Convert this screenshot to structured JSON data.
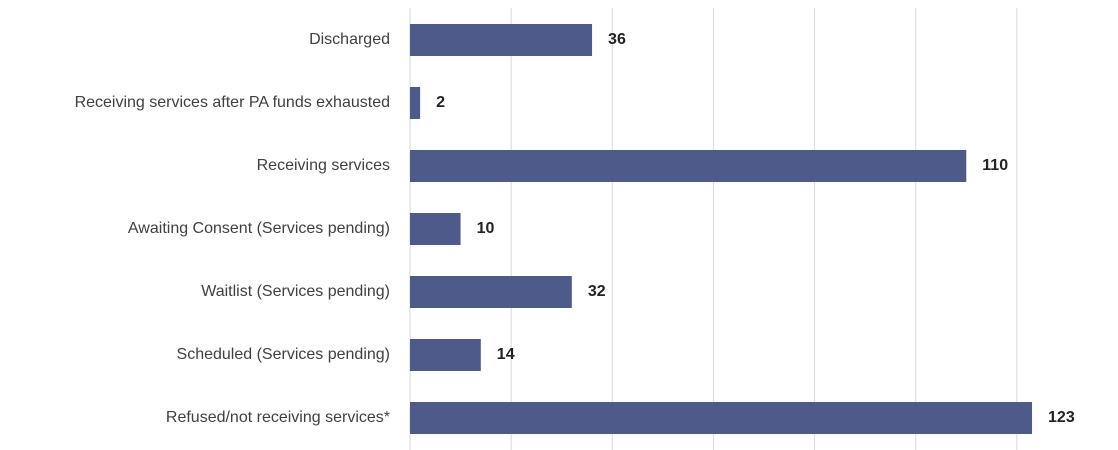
{
  "chart_data": {
    "type": "bar",
    "orientation": "horizontal",
    "categories": [
      "Discharged",
      "Receiving services after PA funds exhausted",
      "Receiving services",
      "Awaiting Consent (Services pending)",
      "Waitlist (Services pending)",
      "Scheduled (Services pending)",
      "Refused/not receiving services*"
    ],
    "values": [
      36,
      2,
      110,
      10,
      32,
      14,
      123
    ],
    "color": "#4e5a89",
    "xlim": [
      0,
      140
    ],
    "xticks": [
      0,
      20,
      40,
      60,
      80,
      100,
      120
    ],
    "grid": true
  }
}
